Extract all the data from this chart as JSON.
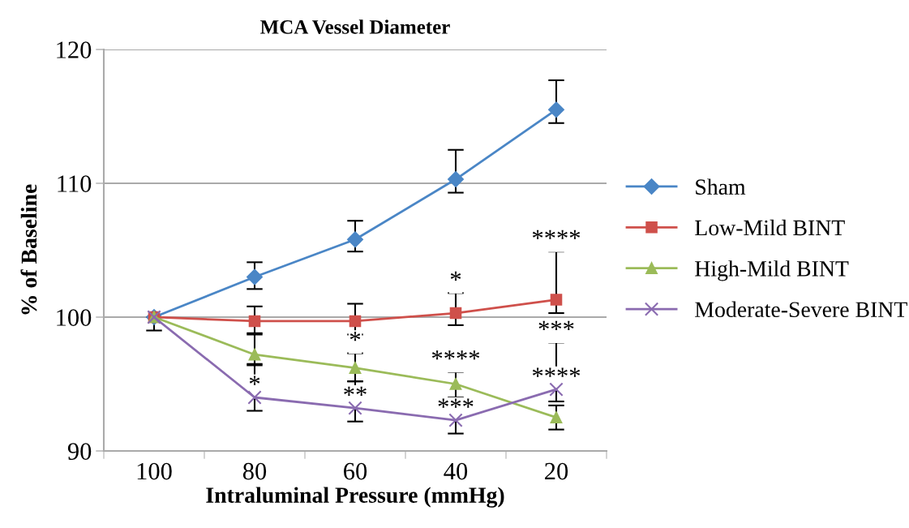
{
  "chart_data": {
    "type": "line",
    "title": "MCA Vessel Diameter",
    "xlabel": "Intraluminal Pressure (mmHg)",
    "ylabel": "% of Baseline",
    "categories": [
      "100",
      "80",
      "60",
      "40",
      "20"
    ],
    "series": [
      {
        "name": "Sham",
        "color": "#4a86c6",
        "marker": "diamond",
        "values": [
          100,
          103.0,
          105.8,
          110.3,
          115.5
        ],
        "errors": [
          [
            99.0,
            100
          ],
          [
            102.1,
            104.1
          ],
          [
            104.9,
            107.2
          ],
          [
            109.3,
            112.5
          ],
          [
            114.5,
            117.7
          ]
        ]
      },
      {
        "name": "Low-Mild BINT",
        "color": "#cf504b",
        "marker": "square",
        "values": [
          100,
          99.7,
          99.7,
          100.3,
          101.3
        ],
        "errors": [
          null,
          [
            98.8,
            100.8
          ],
          [
            98.7,
            101.0
          ],
          [
            99.4,
            101.8
          ],
          [
            100.3,
            104.9
          ]
        ]
      },
      {
        "name": "High-Mild BINT",
        "color": "#9bbb59",
        "marker": "triangle",
        "values": [
          100,
          97.2,
          96.2,
          95.0,
          92.5
        ],
        "errors": [
          null,
          [
            96.4,
            98.7
          ],
          [
            95.2,
            97.3
          ],
          [
            94.0,
            95.9
          ],
          [
            91.6,
            93.4
          ]
        ]
      },
      {
        "name": "Moderate-Severe BINT",
        "color": "#8a6bb0",
        "marker": "cross",
        "values": [
          100,
          94.0,
          93.2,
          92.3,
          94.6
        ],
        "errors": [
          null,
          [
            93.0,
            96.5
          ],
          [
            92.2,
            95.2
          ],
          [
            91.3,
            94.0
          ],
          [
            93.7,
            98.1
          ]
        ]
      }
    ],
    "ylim": [
      90,
      120
    ],
    "yticks": [
      90,
      100,
      110,
      120
    ],
    "grid": "y",
    "legend": "right",
    "annotations": [
      {
        "text": "*",
        "x": "40",
        "y": 101.8
      },
      {
        "text": "****",
        "x": "20",
        "y": 104.9
      },
      {
        "text": "*",
        "x": "60",
        "y": 97.3
      },
      {
        "text": "****",
        "x": "40",
        "y": 95.9
      },
      {
        "text": "*",
        "x": "80",
        "y": 94.0
      },
      {
        "text": "**",
        "x": "60",
        "y": 93.2
      },
      {
        "text": "***",
        "x": "40",
        "y": 92.3
      },
      {
        "text": "***",
        "x": "20",
        "y": 98.1
      },
      {
        "text": "****",
        "x": "20",
        "y": 94.6
      }
    ]
  }
}
